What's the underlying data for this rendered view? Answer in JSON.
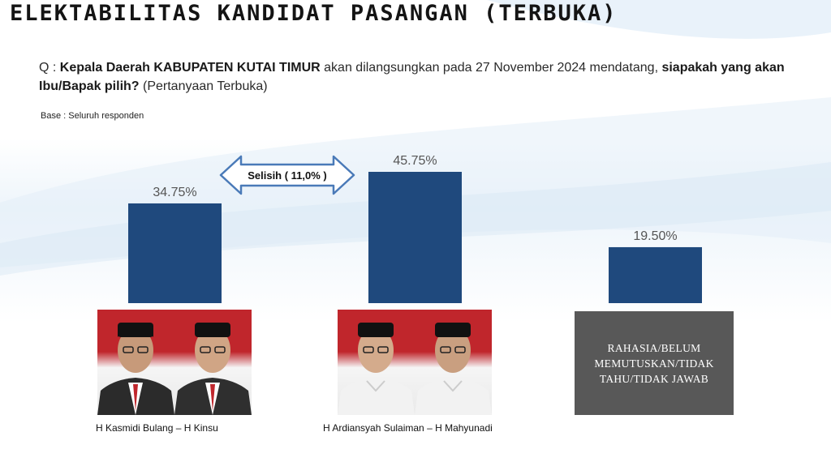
{
  "title": "ELEKTABILITAS KANDIDAT PASANGAN (TERBUKA)",
  "question": {
    "prefix": "Q : ",
    "part1_bold": "Kepala Daerah KABUPATEN KUTAI TIMUR",
    "part2": " akan dilangsungkan pada 27 November 2024 mendatang, ",
    "part3_bold": "siapakah yang akan Ibu/Bapak pilih?",
    "part4": " (Pertanyaan Terbuka)"
  },
  "base": "Base : Seluruh responden",
  "selisih_label": "Selisih  ( 11,0% )",
  "candidates": [
    {
      "name": "H Kasmidi Bulang – H Kinsu"
    },
    {
      "name": "H Ardiansyah Sulaiman – H Mahyunadi"
    }
  ],
  "undecided_label": "RAHASIA/BELUM\nMEMUTUSKAN/TIDAK\nTAHU/TIDAK JAWAB",
  "colors": {
    "bar": "#1f497d",
    "arrow_stroke": "#4a7ab8",
    "undecided_box": "#585858"
  },
  "chart_data": {
    "type": "bar",
    "categories": [
      "H Kasmidi Bulang – H Kinsu",
      "H Ardiansyah Sulaiman – H Mahyunadi",
      "RAHASIA/BELUM MEMUTUSKAN/TIDAK TAHU/TIDAK JAWAB"
    ],
    "values": [
      34.75,
      45.75,
      19.5
    ],
    "value_labels": [
      "34.75%",
      "45.75%",
      "19.50%"
    ],
    "title": "ELEKTABILITAS KANDIDAT PASANGAN (TERBUKA)",
    "xlabel": "",
    "ylabel": "",
    "ylim": [
      0,
      45.75
    ],
    "grid": false,
    "legend": "none"
  }
}
